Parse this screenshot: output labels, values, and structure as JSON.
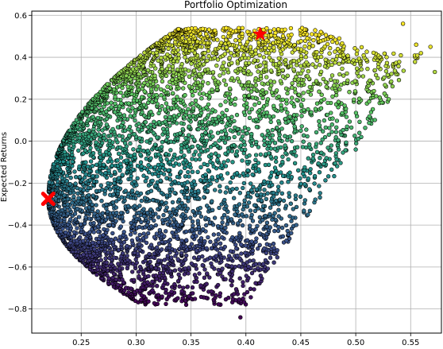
{
  "chart_data": {
    "type": "scatter",
    "title": "Portfolio Optimization",
    "xlabel": "",
    "ylabel": "Expected Returns",
    "xlim": [
      0.205,
      0.578
    ],
    "ylim": [
      -0.915,
      0.62
    ],
    "xticks": [
      0.25,
      0.3,
      0.35,
      0.4,
      0.45,
      0.5,
      0.55
    ],
    "xtick_labels": [
      "0.25",
      "0.30",
      "0.35",
      "0.40",
      "0.45",
      "0.50",
      "0.55"
    ],
    "yticks": [
      -0.8,
      -0.6,
      -0.4,
      -0.2,
      0.0,
      0.2,
      0.4,
      0.6
    ],
    "ytick_labels": [
      "−0.8",
      "−0.6",
      "−0.4",
      "−0.2",
      "0.0",
      "0.2",
      "0.4",
      "0.6"
    ],
    "grid": true,
    "colormap": [
      "#440154",
      "#3b528b",
      "#21918c",
      "#5ec962",
      "#fde725"
    ],
    "point_edge_color": "#000000",
    "sample_points": [
      [
        0.543,
        0.56
      ],
      [
        0.555,
        0.46
      ],
      [
        0.568,
        0.45
      ],
      [
        0.572,
        0.33
      ],
      [
        0.52,
        0.3
      ],
      [
        0.53,
        0.2
      ],
      [
        0.515,
        0.1
      ],
      [
        0.505,
        0.02
      ],
      [
        0.5,
        -0.04
      ],
      [
        0.46,
        -0.1
      ],
      [
        0.44,
        -0.15
      ],
      [
        0.39,
        -0.35
      ],
      [
        0.395,
        -0.84
      ],
      [
        0.41,
        -0.68
      ],
      [
        0.37,
        -0.72
      ],
      [
        0.32,
        -0.74
      ],
      [
        0.335,
        -0.7
      ],
      [
        0.345,
        -0.76
      ],
      [
        0.27,
        -0.62
      ],
      [
        0.26,
        -0.55
      ],
      [
        0.225,
        -0.3
      ],
      [
        0.235,
        -0.2
      ],
      [
        0.29,
        0.05
      ],
      [
        0.34,
        0.3
      ],
      [
        0.37,
        0.42
      ],
      [
        0.43,
        0.53
      ],
      [
        0.46,
        0.51
      ],
      [
        0.485,
        0.49
      ],
      [
        0.475,
        0.38
      ],
      [
        0.42,
        0.2
      ],
      [
        0.38,
        -0.1
      ],
      [
        0.31,
        -0.4
      ],
      [
        0.28,
        -0.2
      ],
      [
        0.33,
        0.1
      ],
      [
        0.45,
        0.05
      ]
    ],
    "markers": [
      {
        "symbol": "star",
        "x": 0.413,
        "y": 0.51,
        "color": "#ff0000"
      },
      {
        "symbol": "x",
        "x": 0.22,
        "y": -0.275,
        "color": "#ff0000"
      }
    ]
  }
}
